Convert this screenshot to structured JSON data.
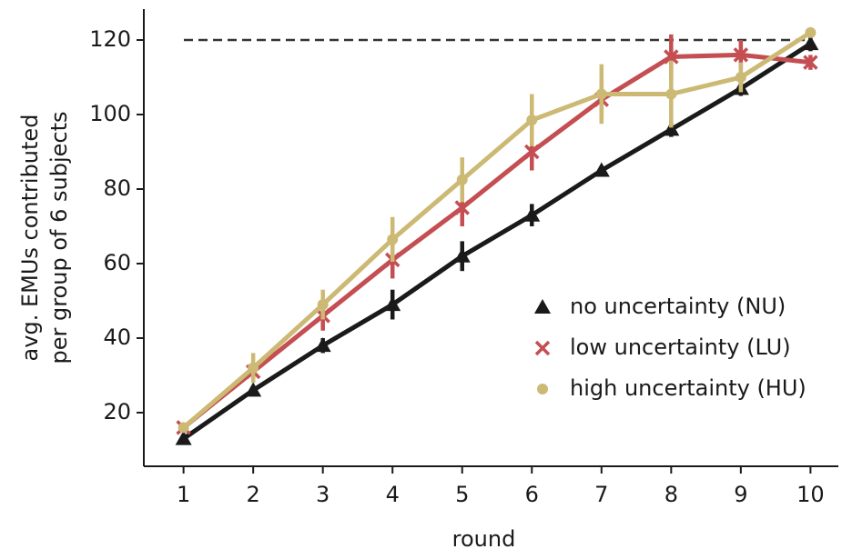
{
  "chart_data": {
    "type": "line",
    "xlabel": "round",
    "ylabel": [
      "avg. EMUs contributed",
      "per group of 6 subjects"
    ],
    "x": [
      1,
      2,
      3,
      4,
      5,
      6,
      7,
      8,
      9,
      10
    ],
    "xlim": [
      0.43,
      10.4
    ],
    "xticks": [
      1,
      2,
      3,
      4,
      5,
      6,
      7,
      8,
      9,
      10
    ],
    "ylim": [
      5.6,
      128.3
    ],
    "yticks": [
      20,
      40,
      60,
      80,
      100,
      120
    ],
    "reference_line": 120,
    "legend": "lower right",
    "series": [
      {
        "name": "no uncertainty (NU)",
        "color": "#1a1a1a",
        "marker": "triangle",
        "values": [
          13,
          26,
          38,
          49,
          62,
          73,
          85,
          96,
          107,
          119
        ],
        "errors": [
          1,
          1,
          2,
          4,
          4,
          3,
          1,
          2,
          2,
          2
        ]
      },
      {
        "name": "low uncertainty (LU)",
        "color": "#c44e52",
        "marker": "x",
        "values": [
          16,
          31,
          46,
          61,
          75,
          90,
          104,
          115.5,
          116,
          114
        ],
        "errors": [
          1,
          2,
          4,
          5,
          5,
          5,
          5,
          6,
          4,
          2
        ]
      },
      {
        "name": "high uncertainty (HU)",
        "color": "#ccb974",
        "marker": "circle",
        "values": [
          16,
          32,
          49,
          66.5,
          82.5,
          98.5,
          105.5,
          105.5,
          110,
          122
        ],
        "errors": [
          1,
          4,
          4,
          6,
          6,
          7,
          8,
          9,
          4,
          1
        ]
      }
    ]
  }
}
